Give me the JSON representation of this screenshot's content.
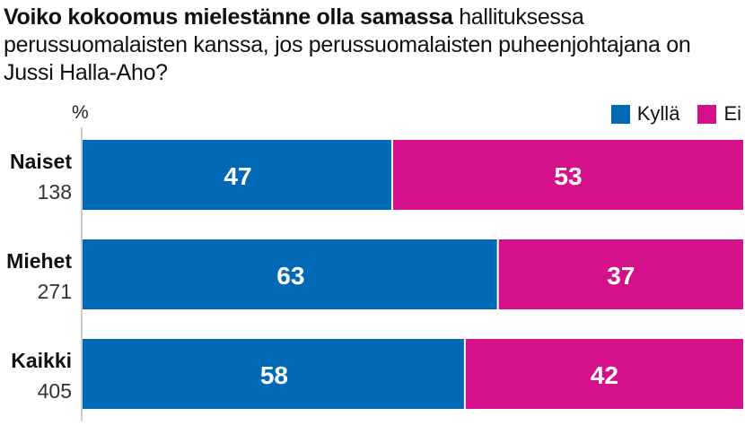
{
  "title": {
    "bold": "Voiko kokoomus mielestänne olla samassa",
    "rest": " hallituksessa perussuomalaisten kanssa, jos perussuomalaisten puheenjohtajana on Jussi Halla-Aho?"
  },
  "unit_label": "%",
  "colors": {
    "kylla": "#0068b4",
    "ei": "#d4118a"
  },
  "chart_data": {
    "type": "bar",
    "orientation": "horizontal",
    "stacked": true,
    "title": "Voiko kokoomus mielestänne olla samassa hallituksessa perussuomalaisten kanssa, jos perussuomalaisten puheenjohtajana on Jussi Halla-Aho?",
    "unit": "%",
    "categories": [
      "Naiset",
      "Miehet",
      "Kaikki"
    ],
    "counts": [
      "138",
      "271",
      "405"
    ],
    "series": [
      {
        "name": "Kyllä",
        "color": "#0068b4",
        "values": [
          47,
          63,
          58
        ]
      },
      {
        "name": "Ei",
        "color": "#d4118a",
        "values": [
          53,
          37,
          42
        ]
      }
    ],
    "xlim": [
      0,
      100
    ],
    "legend": "top-right",
    "grid": false
  }
}
